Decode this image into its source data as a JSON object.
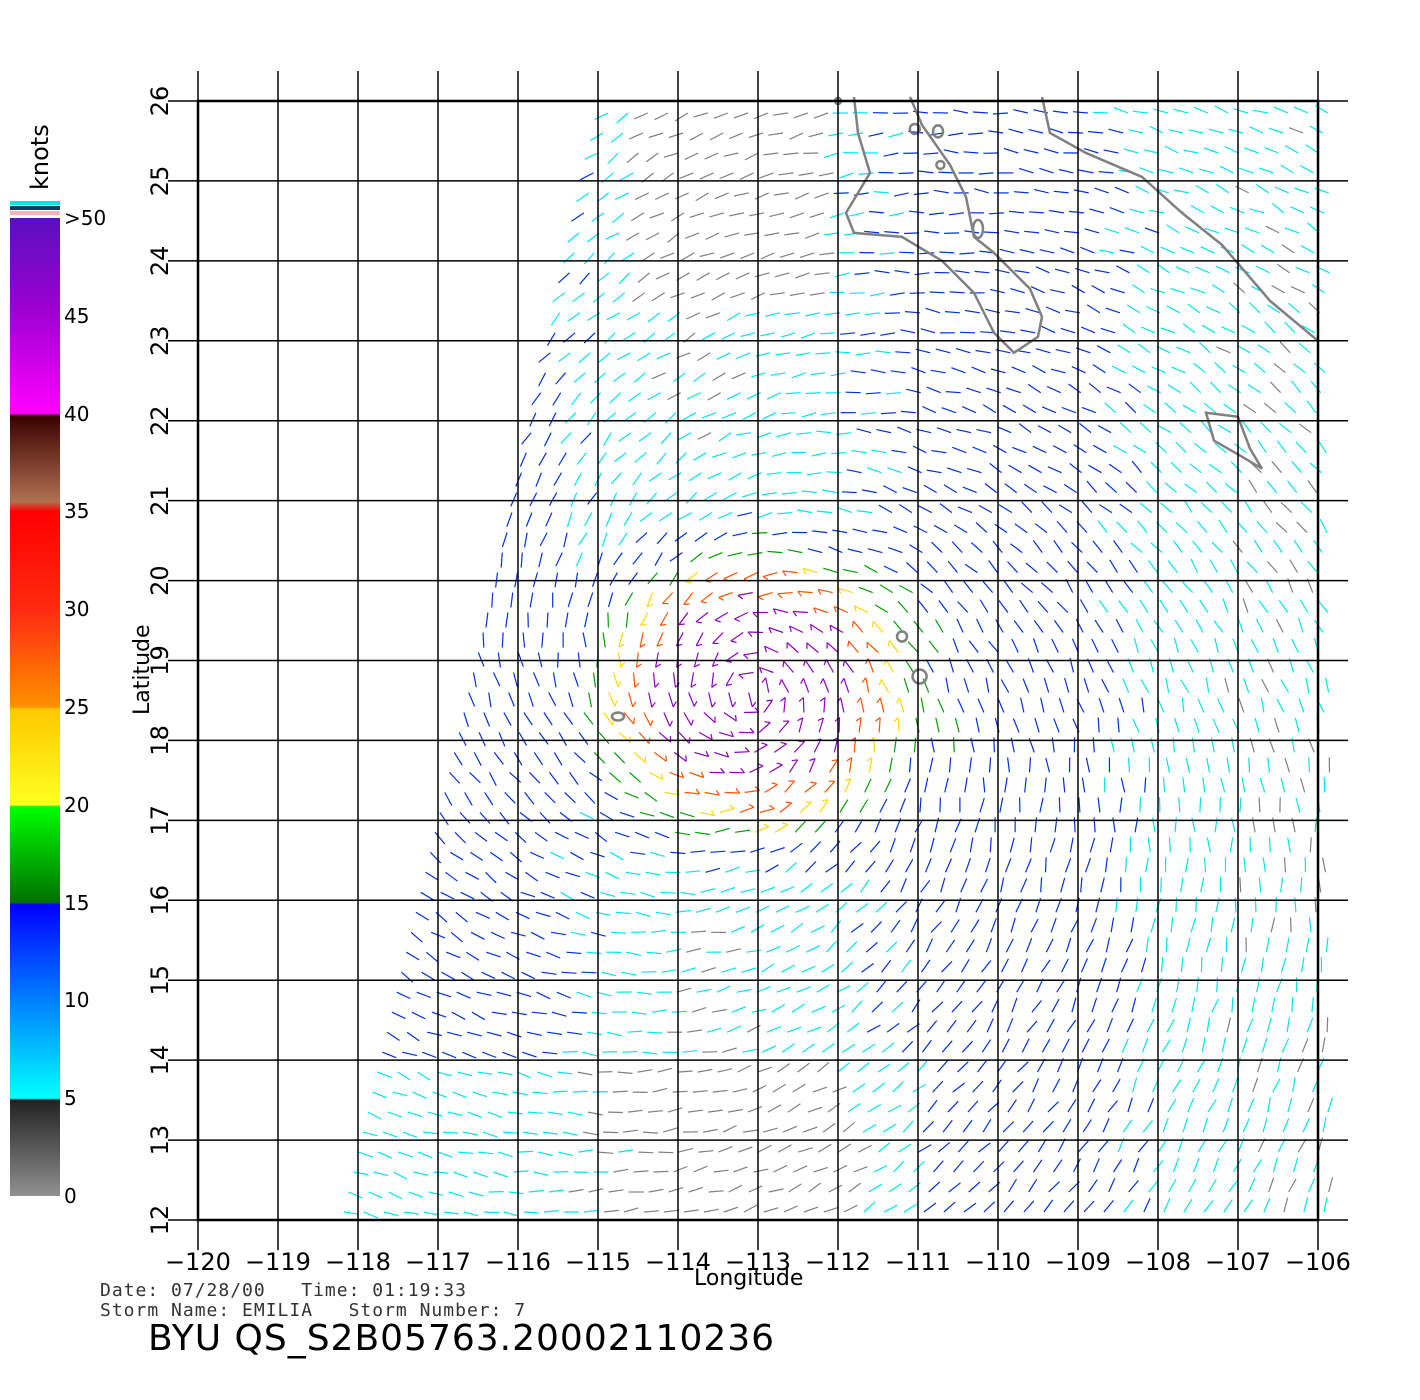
{
  "colorbar": {
    "units": "knots",
    "ticks": [
      {
        "label": ">50",
        "value": 50
      },
      {
        "label": "45",
        "value": 45
      },
      {
        "label": "40",
        "value": 40
      },
      {
        "label": "35",
        "value": 35
      },
      {
        "label": "30",
        "value": 30
      },
      {
        "label": "25",
        "value": 25
      },
      {
        "label": "20",
        "value": 20
      },
      {
        "label": "15",
        "value": 15
      },
      {
        "label": "10",
        "value": 10
      },
      {
        "label": "5",
        "value": 5
      },
      {
        "label": "0",
        "value": 0
      }
    ]
  },
  "axes": {
    "xlabel": "Longitude",
    "ylabel": "Latitude",
    "lon_range": [
      -120,
      -106
    ],
    "lat_range": [
      12,
      26
    ],
    "lon_ticks": [
      "−120",
      "−119",
      "−118",
      "−117",
      "−116",
      "−115",
      "−114",
      "−113",
      "−112",
      "−111",
      "−110",
      "−109",
      "−108",
      "−107",
      "−106"
    ],
    "lat_ticks": [
      "12",
      "13",
      "14",
      "15",
      "16",
      "17",
      "18",
      "19",
      "20",
      "21",
      "22",
      "23",
      "24",
      "25",
      "26"
    ],
    "grid": true
  },
  "storm": {
    "center_lon": -113.1,
    "center_lat": 18.6,
    "max_wind_knots": 45
  },
  "metadata": {
    "date_line": "Date: 07/28/00   Time: 01:19:33",
    "storm_line": "Storm Name: EMILIA   Storm Number: 7",
    "title": "BYU QS_S2B05763.20002110236"
  },
  "colors": {
    "calm": "#808080",
    "light": "#00e5ee",
    "moderate": "#0030e0",
    "fresh": "#00a000",
    "strong": "#ffd700",
    "gale": "#ff5000",
    "storm": "#9000c0",
    "coast": "#808080"
  }
}
